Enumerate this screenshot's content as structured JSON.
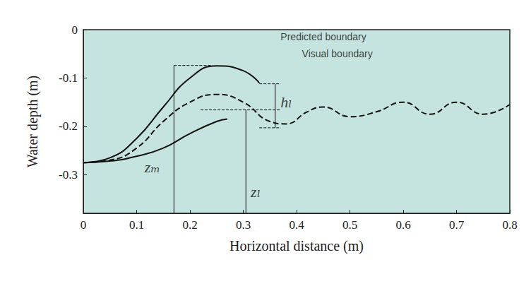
{
  "chart_data": {
    "type": "line",
    "x_label": "Horizontal distance (m)",
    "y_label": "Water depth (m)",
    "xlim": [
      0,
      0.8
    ],
    "xticks": [
      0,
      0.1,
      0.2,
      0.3,
      0.4,
      0.5,
      0.6,
      0.7,
      0.8
    ],
    "ylim": [
      -0.38,
      0
    ],
    "yticks": [
      -0.3,
      -0.2,
      -0.1,
      0
    ],
    "grid": false,
    "series": [
      {
        "name": "Predicted boundary",
        "color": "#111111",
        "line_style": "solid",
        "x": [
          0,
          0.05,
          0.1,
          0.15,
          0.2,
          0.25,
          0.3,
          0.33
        ],
        "values": [
          -0.275,
          -0.265,
          -0.225,
          -0.16,
          -0.1,
          -0.075,
          -0.085,
          -0.11
        ]
      },
      {
        "name": "Predicted boundary",
        "color": "#111111",
        "line_style": "solid",
        "x": [
          0,
          0.05,
          0.1,
          0.15,
          0.2,
          0.25,
          0.27
        ],
        "values": [
          -0.275,
          -0.272,
          -0.262,
          -0.245,
          -0.215,
          -0.19,
          -0.185
        ]
      },
      {
        "name": "Visual boundary",
        "color": "#111111",
        "line_style": "dashed",
        "x": [
          0,
          0.05,
          0.1,
          0.15,
          0.2,
          0.25,
          0.3,
          0.35,
          0.38,
          0.42,
          0.45,
          0.5,
          0.55,
          0.6,
          0.65,
          0.7,
          0.75,
          0.8
        ],
        "values": [
          -0.275,
          -0.27,
          -0.245,
          -0.19,
          -0.15,
          -0.134,
          -0.15,
          -0.19,
          -0.195,
          -0.17,
          -0.16,
          -0.18,
          -0.17,
          -0.15,
          -0.175,
          -0.15,
          -0.175,
          -0.155
        ]
      }
    ],
    "guides": [
      {
        "x": [
          0.17,
          0.17
        ],
        "values": [
          -0.38,
          -0.074
        ],
        "line_style": "solid"
      },
      {
        "x": [
          0.17,
          0.241
        ],
        "values": [
          -0.074,
          -0.074
        ],
        "line_style": "dashed"
      },
      {
        "x": [
          0.305,
          0.305
        ],
        "values": [
          -0.38,
          -0.166
        ],
        "line_style": "solid"
      },
      {
        "x": [
          0.22,
          0.37
        ],
        "values": [
          -0.166,
          -0.166
        ],
        "line_style": "dashed"
      },
      {
        "x": [
          0.36,
          0.36
        ],
        "values": [
          -0.112,
          -0.203
        ],
        "line_style": "solid"
      },
      {
        "x": [
          0.33,
          0.37
        ],
        "values": [
          -0.112,
          -0.112
        ],
        "line_style": "dashed"
      },
      {
        "x": [
          0.33,
          0.37
        ],
        "values": [
          -0.203,
          -0.203
        ],
        "line_style": "dashed"
      }
    ],
    "annotations": [
      {
        "text": "Predicted boundary",
        "x": 0.37,
        "y": -0.015
      },
      {
        "text": "Visual boundary",
        "x": 0.41,
        "y": -0.05
      },
      {
        "text": "hₗ",
        "x": 0.37,
        "y": -0.15
      },
      {
        "text": "zₘ",
        "x": 0.115,
        "y": -0.284
      },
      {
        "text": "zₗ",
        "x": 0.314,
        "y": -0.335
      }
    ]
  }
}
